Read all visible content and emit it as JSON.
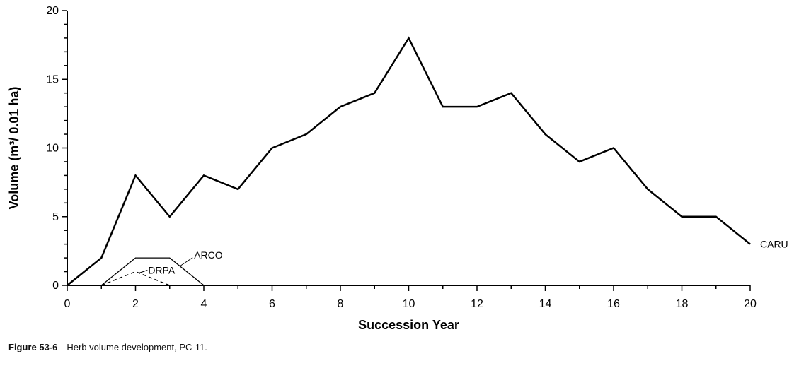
{
  "chart_data": {
    "type": "line",
    "title": "",
    "xlabel": "Succession Year",
    "ylabel": "Volume (m³/ 0.01 ha)",
    "xlim": [
      0,
      20
    ],
    "ylim": [
      0,
      20
    ],
    "x_ticks": [
      0,
      2,
      4,
      6,
      8,
      10,
      12,
      14,
      16,
      18,
      20
    ],
    "y_ticks": [
      0,
      5,
      10,
      15,
      20
    ],
    "grid": false,
    "legend": "none (series labelled directly on lines)",
    "series": [
      {
        "name": "CARU",
        "style": "solid-thick",
        "color": "#000000",
        "x": [
          0,
          1,
          2,
          3,
          4,
          5,
          6,
          7,
          8,
          9,
          10,
          11,
          12,
          13,
          14,
          15,
          16,
          17,
          18,
          19,
          20
        ],
        "y": [
          0,
          2,
          8,
          5,
          8,
          7,
          10,
          11,
          13,
          14,
          18,
          13,
          13,
          14,
          11,
          9,
          10,
          7,
          5,
          5,
          3
        ]
      },
      {
        "name": "ARCO",
        "style": "solid-thin",
        "color": "#000000",
        "x": [
          1,
          2,
          3,
          4
        ],
        "y": [
          0,
          2,
          2,
          0
        ]
      },
      {
        "name": "DRPA",
        "style": "dashed-thin",
        "color": "#000000",
        "x": [
          1,
          2,
          3
        ],
        "y": [
          0,
          1,
          0
        ]
      }
    ]
  },
  "caption": {
    "figure_number": "Figure 53-6",
    "text": "—Herb volume development, PC-11."
  }
}
